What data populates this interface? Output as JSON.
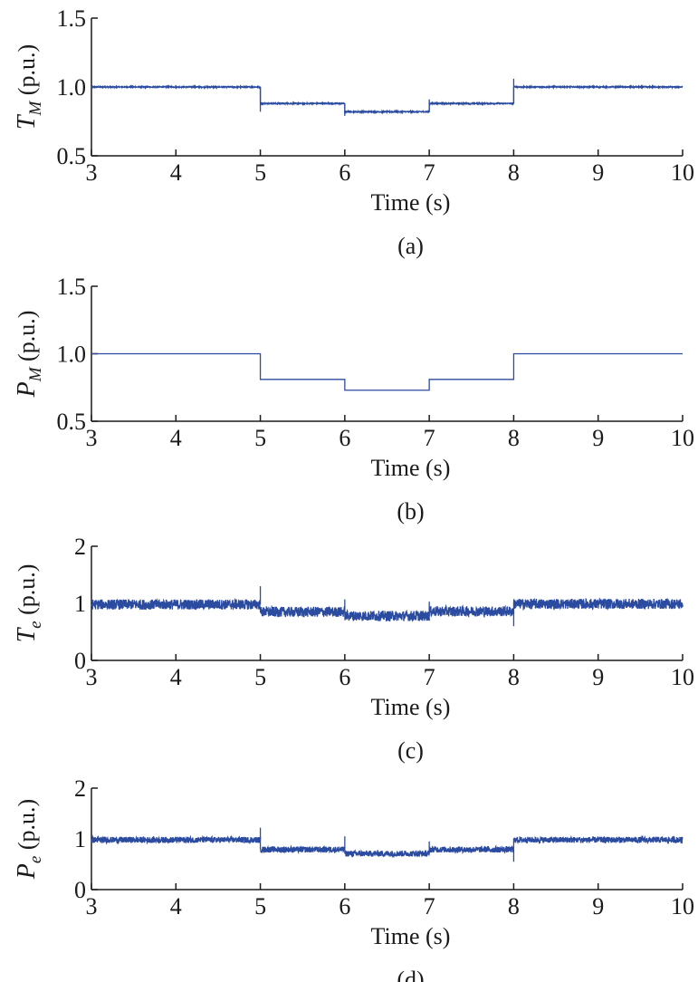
{
  "chart_data": [
    {
      "type": "line",
      "panel": "(a)",
      "ylabel": "T_M (p.u.)",
      "ylabel_main": "T",
      "ylabel_sub": "M",
      "ylabel_unit": " (p.u.)",
      "xlabel": "Time (s)",
      "caption": "(a)",
      "xlim": [
        3,
        10
      ],
      "ylim": [
        0.5,
        1.5
      ],
      "xticks": [
        "3",
        "4",
        "5",
        "6",
        "7",
        "8",
        "9",
        "10"
      ],
      "yticks": [
        "0.5",
        "1.0",
        "1.5"
      ],
      "noise": 0.004,
      "spikes": [
        [
          5,
          0.82
        ],
        [
          6,
          0.79
        ],
        [
          7,
          0.91
        ],
        [
          8,
          1.06
        ]
      ],
      "series": [
        {
          "values": [
            [
              3,
              1.0
            ],
            [
              5,
              1.0
            ],
            [
              5,
              0.88
            ],
            [
              6,
              0.88
            ],
            [
              6,
              0.82
            ],
            [
              7,
              0.82
            ],
            [
              7,
              0.88
            ],
            [
              8,
              0.88
            ],
            [
              8,
              1.0
            ],
            [
              10,
              1.0
            ]
          ]
        }
      ]
    },
    {
      "type": "line",
      "panel": "(b)",
      "ylabel": "P_M (p.u.)",
      "ylabel_main": "P",
      "ylabel_sub": "M",
      "ylabel_unit": " (p.u.)",
      "xlabel": "Time (s)",
      "caption": "(b)",
      "xlim": [
        3,
        10
      ],
      "ylim": [
        0.5,
        1.5
      ],
      "xticks": [
        "3",
        "4",
        "5",
        "6",
        "7",
        "8",
        "9",
        "10"
      ],
      "yticks": [
        "0.5",
        "1.0",
        "1.5"
      ],
      "noise": 0,
      "spikes": [],
      "series": [
        {
          "values": [
            [
              3,
              1.0
            ],
            [
              5,
              1.0
            ],
            [
              5,
              0.81
            ],
            [
              6,
              0.81
            ],
            [
              6,
              0.73
            ],
            [
              7,
              0.73
            ],
            [
              7,
              0.81
            ],
            [
              8,
              0.81
            ],
            [
              8,
              1.0
            ],
            [
              10,
              1.0
            ]
          ]
        }
      ]
    },
    {
      "type": "line",
      "panel": "(c)",
      "ylabel": "T_e (p.u.)",
      "ylabel_main": "T",
      "ylabel_sub": "e",
      "ylabel_unit": " (p.u.)",
      "xlabel": "Time (s)",
      "caption": "(c)",
      "xlim": [
        3,
        10
      ],
      "ylim": [
        0,
        2
      ],
      "xticks": [
        "3",
        "4",
        "5",
        "6",
        "7",
        "8",
        "9",
        "10"
      ],
      "yticks": [
        "0",
        "1",
        "2"
      ],
      "noise": 0.09,
      "spikes": [
        [
          5,
          1.3
        ],
        [
          6,
          1.07
        ],
        [
          7,
          1.03
        ],
        [
          8,
          0.6
        ]
      ],
      "series": [
        {
          "values": [
            [
              3,
              0.98
            ],
            [
              5,
              0.98
            ],
            [
              5,
              0.85
            ],
            [
              6,
              0.85
            ],
            [
              6,
              0.78
            ],
            [
              7,
              0.78
            ],
            [
              7,
              0.86
            ],
            [
              8,
              0.86
            ],
            [
              8,
              0.99
            ],
            [
              10,
              0.99
            ]
          ]
        }
      ]
    },
    {
      "type": "line",
      "panel": "(d)",
      "ylabel": "P_e (p.u.)",
      "ylabel_main": "P",
      "ylabel_sub": "e",
      "ylabel_unit": " (p.u.)",
      "xlabel": "Time (s)",
      "caption": "(d)",
      "xlim": [
        3,
        10
      ],
      "ylim": [
        0,
        2
      ],
      "xticks": [
        "3",
        "4",
        "5",
        "6",
        "7",
        "8",
        "9",
        "10"
      ],
      "yticks": [
        "0",
        "1",
        "2"
      ],
      "noise": 0.06,
      "spikes": [
        [
          5,
          1.22
        ],
        [
          6,
          1.05
        ],
        [
          7,
          0.95
        ],
        [
          8,
          0.55
        ]
      ],
      "series": [
        {
          "values": [
            [
              3,
              0.98
            ],
            [
              5,
              0.98
            ],
            [
              5,
              0.79
            ],
            [
              6,
              0.79
            ],
            [
              6,
              0.71
            ],
            [
              7,
              0.71
            ],
            [
              7,
              0.79
            ],
            [
              8,
              0.79
            ],
            [
              8,
              0.98
            ],
            [
              10,
              0.98
            ]
          ]
        }
      ]
    }
  ],
  "style": {
    "line_color": "#2b4ba0",
    "axis_color": "#1a1a1a"
  }
}
